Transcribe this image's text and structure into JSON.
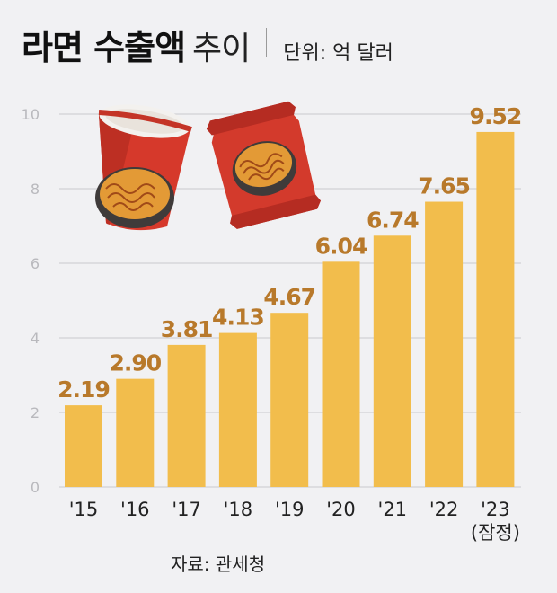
{
  "header": {
    "title_bold": "라면 수출액",
    "title_light": "추이",
    "unit": "단위: 억 달러"
  },
  "source": "자료: 관세청",
  "colors": {
    "bar": "#f2bd4c",
    "value_label": "#b8792b",
    "grid": "#c9c9cc",
    "background": "#f1f1f3"
  },
  "illustration": {
    "icon": "ramen-cup-and-pack-icon"
  },
  "chart_data": {
    "type": "bar",
    "categories": [
      "'15",
      "'16",
      "'17",
      "'18",
      "'19",
      "'20",
      "'21",
      "'22",
      "'23"
    ],
    "category_notes": [
      "",
      "",
      "",
      "",
      "",
      "",
      "",
      "",
      "(잠정)"
    ],
    "values": [
      2.19,
      2.9,
      3.81,
      4.13,
      4.67,
      6.04,
      6.74,
      7.65,
      9.52
    ],
    "value_labels": [
      "2.19",
      "2.90",
      "3.81",
      "4.13",
      "4.67",
      "6.04",
      "6.74",
      "7.65",
      "9.52"
    ],
    "yticks": [
      0,
      2,
      4,
      6,
      8,
      10
    ],
    "ylim": [
      0,
      10
    ],
    "grid": true,
    "title": "라면 수출액 추이",
    "ylabel": "",
    "xlabel": ""
  }
}
